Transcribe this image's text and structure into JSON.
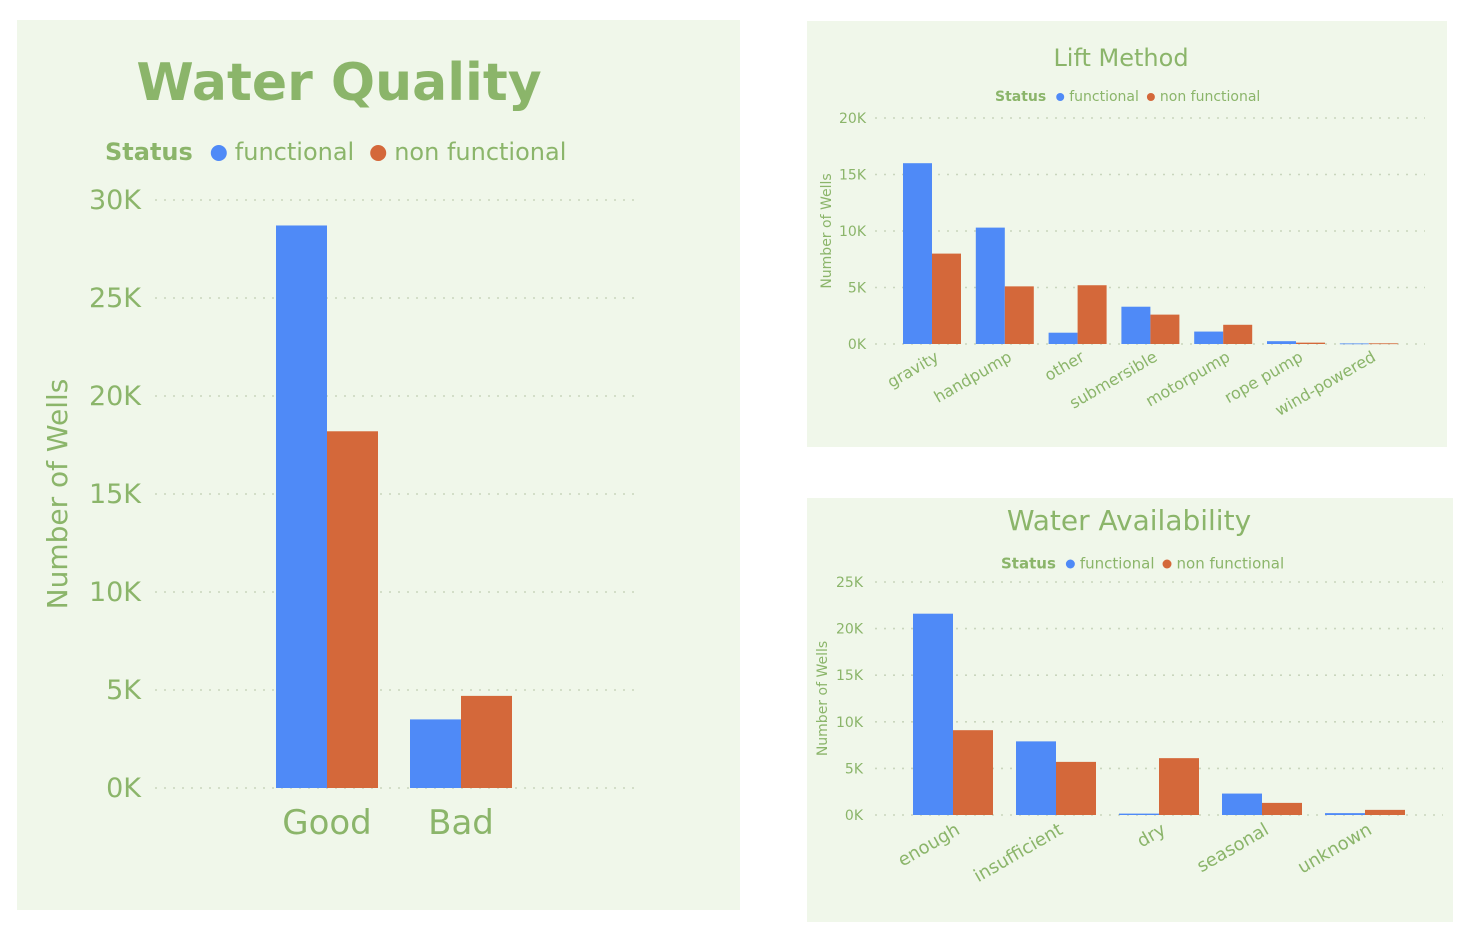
{
  "colors": {
    "functional": "#4f8af7",
    "non_functional": "#d4683a",
    "text": "#8bb56a",
    "panel_bg": "#f0f7ea"
  },
  "chart_data": [
    {
      "id": "quality",
      "type": "bar",
      "title": "Water Quality",
      "legend": {
        "title": "Status",
        "items": [
          "functional",
          "non functional"
        ],
        "position": "top-left"
      },
      "ylabel": "Number of Wells",
      "xlabel": "",
      "categories": [
        "Good",
        "Bad"
      ],
      "series": [
        {
          "name": "functional",
          "values": [
            28700,
            3500
          ]
        },
        {
          "name": "non functional",
          "values": [
            18200,
            4700
          ]
        }
      ],
      "ylim": [
        0,
        30000
      ],
      "yticks": [
        0,
        5000,
        10000,
        15000,
        20000,
        25000,
        30000
      ],
      "ytick_labels": [
        "0K",
        "5K",
        "10K",
        "15K",
        "20K",
        "25K",
        "30K"
      ],
      "grid": true
    },
    {
      "id": "lift",
      "type": "bar",
      "title": "Lift Method",
      "legend": {
        "title": "Status",
        "items": [
          "functional",
          "non functional"
        ],
        "position": "top-center"
      },
      "ylabel": "Number of Wells",
      "xlabel": "",
      "categories": [
        "gravity",
        "handpump",
        "other",
        "submersible",
        "motorpump",
        "rope pump",
        "wind-powered"
      ],
      "series": [
        {
          "name": "functional",
          "values": [
            16000,
            10300,
            1000,
            3300,
            1100,
            250,
            50
          ]
        },
        {
          "name": "non functional",
          "values": [
            8000,
            5100,
            5200,
            2600,
            1700,
            120,
            60
          ]
        }
      ],
      "ylim": [
        0,
        20000
      ],
      "yticks": [
        0,
        5000,
        10000,
        15000,
        20000
      ],
      "ytick_labels": [
        "0K",
        "5K",
        "10K",
        "15K",
        "20K"
      ],
      "grid": true
    },
    {
      "id": "avail",
      "type": "bar",
      "title": "Water Availability",
      "legend": {
        "title": "Status",
        "items": [
          "functional",
          "non functional"
        ],
        "position": "top-center"
      },
      "ylabel": "Number of Wells",
      "xlabel": "",
      "categories": [
        "enough",
        "insufficient",
        "dry",
        "seasonal",
        "unknown"
      ],
      "series": [
        {
          "name": "functional",
          "values": [
            21600,
            7900,
            150,
            2300,
            200
          ]
        },
        {
          "name": "non functional",
          "values": [
            9100,
            5700,
            6100,
            1300,
            550
          ]
        }
      ],
      "ylim": [
        0,
        25000
      ],
      "yticks": [
        0,
        5000,
        10000,
        15000,
        20000,
        25000
      ],
      "ytick_labels": [
        "0K",
        "5K",
        "10K",
        "15K",
        "20K",
        "25K"
      ],
      "grid": true
    }
  ]
}
